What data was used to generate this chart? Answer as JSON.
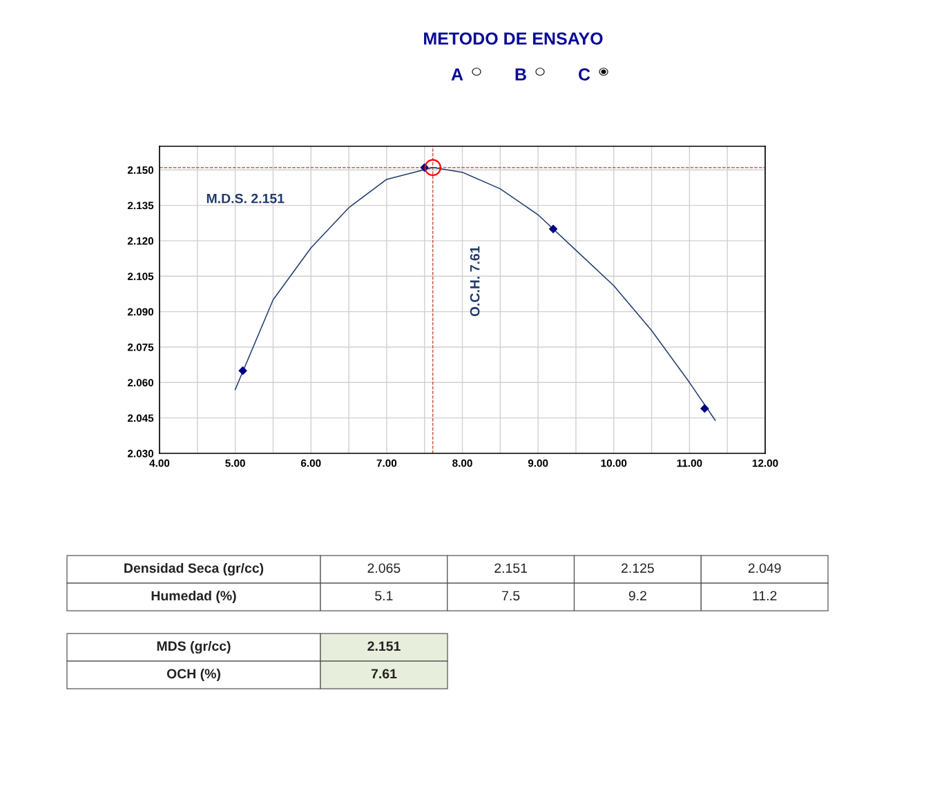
{
  "chart_data": {
    "type": "scatter",
    "title": "METODO DE ENSAYO",
    "series": [
      {
        "type": "line",
        "color": "#1f3a6e",
        "marker": "none",
        "x": [
          5.0,
          5.5,
          6.0,
          6.5,
          7.0,
          7.61,
          8.0,
          8.5,
          9.0,
          9.5,
          10.0,
          10.5,
          11.0,
          11.34
        ],
        "values": [
          2.057,
          2.095,
          2.117,
          2.134,
          2.146,
          2.151,
          2.149,
          2.142,
          2.131,
          2.116,
          2.101,
          2.082,
          2.06,
          2.044
        ]
      },
      {
        "color": "#000080",
        "marker": "diamond",
        "x": [
          5.1,
          7.5,
          9.2,
          11.2
        ],
        "values": [
          2.065,
          2.151,
          2.125,
          2.049
        ]
      },
      {
        "color": "#ff0000",
        "marker": "circle",
        "x": [
          7.61
        ],
        "values": [
          2.151
        ]
      }
    ],
    "xlim": [
      4.0,
      12.0
    ],
    "xticks": [
      {
        "value": 4,
        "label": "4.00"
      },
      {
        "value": 4.5,
        "label": null
      },
      {
        "value": 5,
        "label": "5.00"
      },
      {
        "value": 5.5,
        "label": null
      },
      {
        "value": 6,
        "label": "6.00"
      },
      {
        "value": 6.5,
        "label": null
      },
      {
        "value": 7,
        "label": "7.00"
      },
      {
        "value": 7.5,
        "label": null
      },
      {
        "value": 8,
        "label": "8.00"
      },
      {
        "value": 8.5,
        "label": null
      },
      {
        "value": 9,
        "label": "9.00"
      },
      {
        "value": 9.5,
        "label": null
      },
      {
        "value": 10,
        "label": "10.00"
      },
      {
        "value": 10.5,
        "label": null
      },
      {
        "value": 11,
        "label": "11.00"
      },
      {
        "value": 11.5,
        "label": null
      },
      {
        "value": 12,
        "label": "12.00"
      }
    ],
    "ylim": [
      2.03,
      2.16
    ],
    "yticks": [
      {
        "value": 2.03,
        "label": "2.030"
      },
      {
        "value": 2.045,
        "label": "2.045"
      },
      {
        "value": 2.06,
        "label": "2.060"
      },
      {
        "value": 2.075,
        "label": "2.075"
      },
      {
        "value": 2.09,
        "label": "2.090"
      },
      {
        "value": 2.105,
        "label": "2.105"
      },
      {
        "value": 2.12,
        "label": "2.120"
      },
      {
        "value": 2.135,
        "label": "2.135"
      },
      {
        "value": 2.15,
        "label": "2.150"
      }
    ],
    "grid": true,
    "ref_lines": [
      {
        "axis": "y",
        "value": 2.151,
        "label": "M.D.S. 2.151",
        "color": "#c0392b",
        "line_style": "dashed"
      },
      {
        "axis": "x",
        "value": 7.61,
        "label": "O.C.H. 7.61",
        "color": "#c0392b",
        "line_style": "dashed"
      }
    ],
    "annotations": [
      "A",
      "B",
      "C",
      "Densidad Seca (gr/cc)",
      "2.065",
      "2.151",
      "2.125",
      "2.049",
      "Humedad (%)",
      "5.1",
      "7.5",
      "9.2",
      "11.2",
      "MDS (gr/cc)",
      "2.151",
      "OCH (%)",
      "7.61"
    ]
  }
}
